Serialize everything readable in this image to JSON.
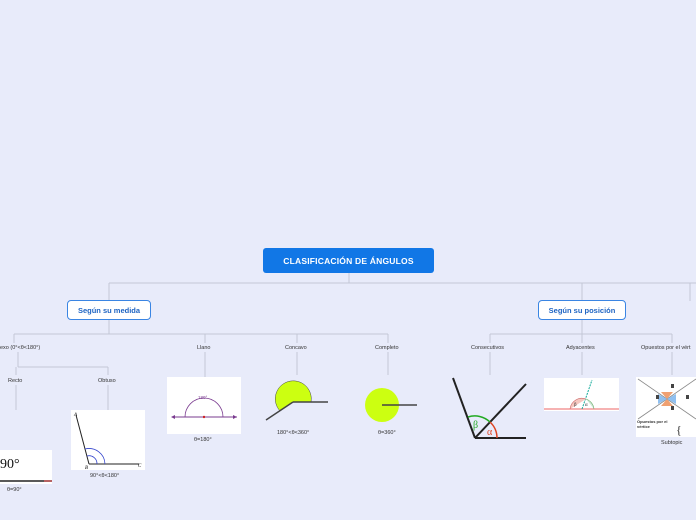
{
  "root": {
    "label": "CLASIFICACIÓN DE ÁNGULOS"
  },
  "branches": {
    "medida": {
      "label": "Según su medida"
    },
    "posicion": {
      "label": "Según su posición"
    }
  },
  "medida_topics": {
    "convexo": "exo (0°<θ<180°)",
    "llano": "Llano",
    "concavo": "Concavo",
    "completo": "Completo",
    "recto": "Recto",
    "obtuso": "Obtuso"
  },
  "posicion_topics": {
    "consecutivos": "Consecutivos",
    "adyacentes": "Adyacentes",
    "opuestos": "Opuestos por el vért"
  },
  "captions": {
    "recto": "θ=90°",
    "obtuso": "90°<θ<180°",
    "llano": "θ=180°",
    "concavo": "180°<θ<360°",
    "completo": "θ=360°",
    "opuestos": "Subtopic"
  },
  "image_text": {
    "recto_big": "90°",
    "llano_deg": "180°",
    "obtuso_a": "A",
    "obtuso_b": "B",
    "obtuso_c": "C",
    "beta": "β",
    "alpha": "α",
    "ady_beta": "β",
    "ady_alpha": "α",
    "opuestos_label": "Opuestos por el vértice"
  },
  "colors": {
    "background": "#e8ebfa",
    "root": "#1177e6",
    "branch_border": "#3a85e3",
    "connector": "#c3c7d6",
    "lime": "#ccff11"
  }
}
